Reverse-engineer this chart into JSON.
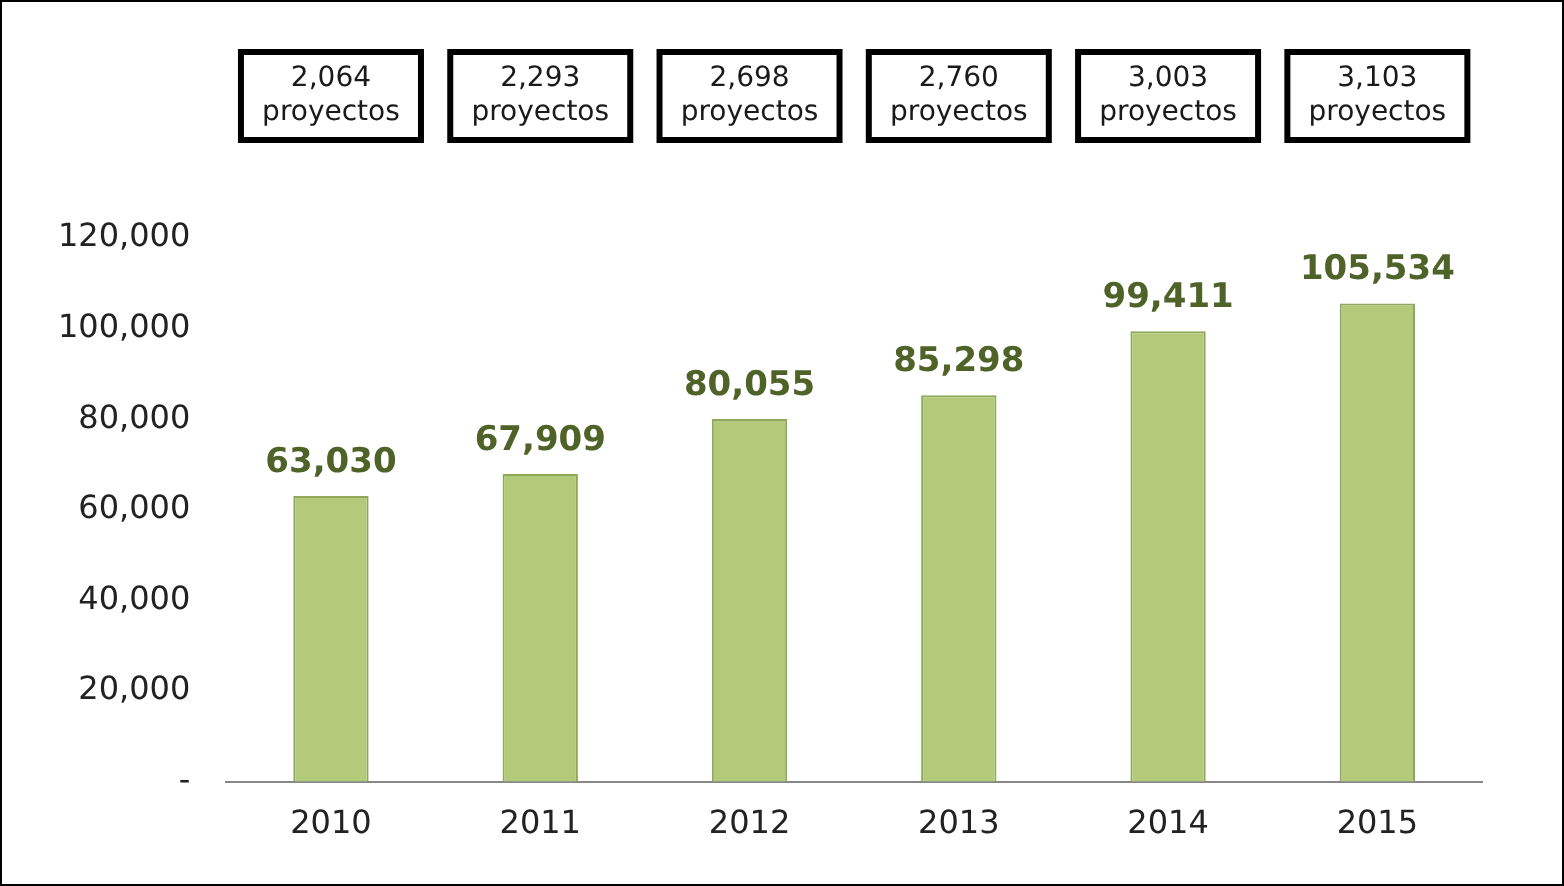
{
  "chart_data": {
    "type": "bar",
    "categories": [
      "2010",
      "2011",
      "2012",
      "2013",
      "2014",
      "2015"
    ],
    "values": [
      63030,
      67909,
      80055,
      85298,
      99411,
      105534
    ],
    "color": "#b3ca7a",
    "ylim": [
      0,
      120000
    ],
    "yticks": [
      {
        "value": 0,
        "label": "-"
      },
      {
        "value": 20000,
        "label": "20,000"
      },
      {
        "value": 40000,
        "label": "40,000"
      },
      {
        "value": 60000,
        "label": "60,000"
      },
      {
        "value": 80000,
        "label": "80,000"
      },
      {
        "value": 100000,
        "label": "100,000"
      },
      {
        "value": 120000,
        "label": "120,000"
      }
    ],
    "grid": false,
    "legend": false,
    "value_labels": [
      "63,030",
      "67,909",
      "80,055",
      "85,298",
      "99,411",
      "105,534"
    ],
    "annotations": [
      "2,064 proyectos",
      "2,293 proyectos",
      "2,698 proyectos",
      "2,760 proyectos",
      "3,003 proyectos",
      "3,103 proyectos"
    ]
  }
}
